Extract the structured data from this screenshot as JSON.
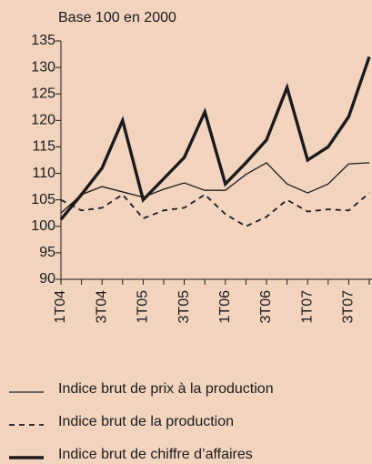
{
  "chart_data": {
    "type": "line",
    "title": "Base 100 en 2000",
    "categories": [
      "1T04",
      null,
      "3T04",
      null,
      "1T05",
      null,
      "3T05",
      null,
      "1T06",
      null,
      "3T06",
      null,
      "1T07",
      null,
      "3T07",
      null
    ],
    "ylim": [
      90,
      135
    ],
    "yticks": [
      90,
      95,
      100,
      105,
      110,
      115,
      120,
      125,
      130,
      135
    ],
    "series": [
      {
        "name": "Indice brut de prix à la production",
        "color": "#1a1a1a",
        "linestyle": "thin",
        "values": [
          102.5,
          106,
          107.5,
          106.5,
          105.5,
          107,
          108.2,
          106.8,
          106.8,
          109.8,
          112,
          108,
          106.3,
          108,
          111.8,
          112
        ]
      },
      {
        "name": "Indice brut de la production",
        "color": "#1a1a1a",
        "linestyle": "dashed",
        "values": [
          105,
          103,
          103.5,
          106,
          101.5,
          103,
          103.5,
          106,
          102.3,
          100,
          101.8,
          105,
          102.8,
          103.2,
          103,
          106.3
        ]
      },
      {
        "name": "Indice brut de chiffre d’affaires",
        "color": "#1a1a1a",
        "linestyle": "thick",
        "values": [
          101.3,
          106,
          111,
          120,
          105,
          109,
          113,
          121.6,
          108,
          112,
          116.3,
          126.2,
          112.5,
          115,
          120.7,
          132
        ]
      }
    ]
  }
}
